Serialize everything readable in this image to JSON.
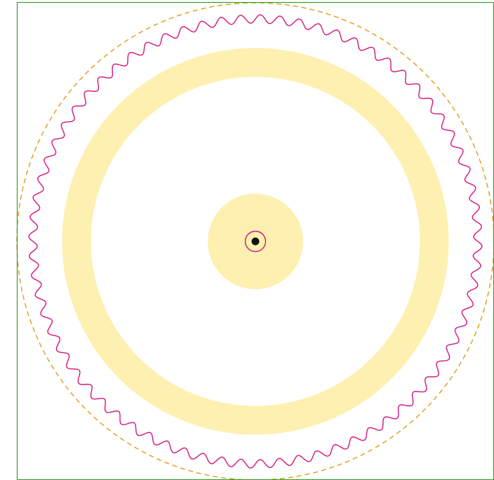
{
  "diagram": {
    "type": "concentric-circles",
    "colors": {
      "frame": "#3a9e2e",
      "outer_dashed_circle": "#e09a1a",
      "wavy_circle": "#d4147a",
      "ring_fill": "#fdf0b0",
      "center_disk_fill": "#fdf0b0",
      "small_circle": "#d4147a",
      "center_dot": "#111111",
      "background": "#ffffff"
    },
    "wavy_circle_wave_count": 72
  }
}
